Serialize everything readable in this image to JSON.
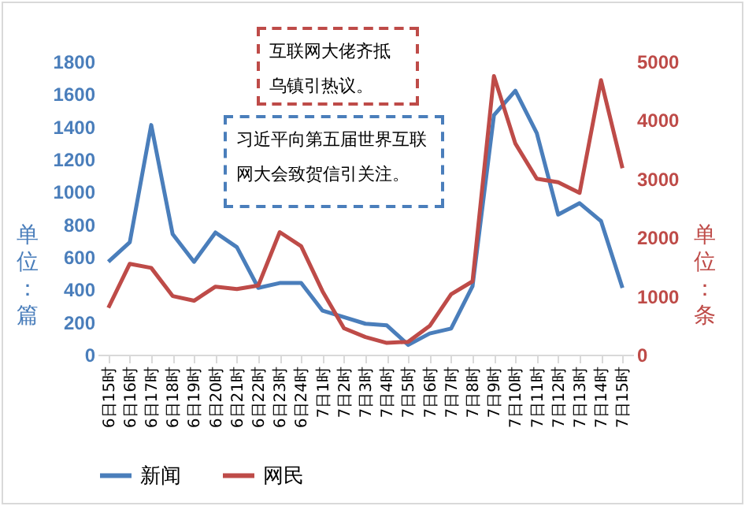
{
  "chart_data": {
    "type": "line",
    "categories": [
      "6日15时",
      "6日16时",
      "6日17时",
      "6日18时",
      "6日19时",
      "6日20时",
      "6日21时",
      "6日22时",
      "6日23时",
      "6日24时",
      "7日1时",
      "7日2时",
      "7日3时",
      "7日4时",
      "7日5时",
      "7日6时",
      "7日7时",
      "7日8时",
      "7日9时",
      "7日10时",
      "7日11时",
      "7日12时",
      "7日13时",
      "7日14时",
      "7日15时"
    ],
    "series": [
      {
        "name": "新闻",
        "color": "#4a7ebb",
        "values": [
          570,
          690,
          1410,
          740,
          570,
          750,
          660,
          410,
          440,
          440,
          270,
          230,
          190,
          180,
          60,
          130,
          160,
          420,
          1470,
          1620,
          1360,
          860,
          930,
          820,
          410
        ]
      },
      {
        "name": "网民",
        "color": "#be4b48",
        "axis": "y2",
        "values": [
          800,
          1550,
          1480,
          1000,
          920,
          1160,
          1120,
          1180,
          2090,
          1850,
          1080,
          450,
          300,
          200,
          220,
          490,
          1030,
          1250,
          4750,
          3600,
          3000,
          2940,
          2760,
          4680,
          3180
        ]
      }
    ],
    "ylabel": "单位：篇",
    "y2label": "单位：条",
    "ylim": [
      0,
      1800
    ],
    "yticks": [
      0,
      200,
      400,
      600,
      800,
      1000,
      1200,
      1400,
      1600,
      1800
    ],
    "y2lim": [
      0,
      5000
    ],
    "y2ticks": [
      0,
      1000,
      2000,
      3000,
      4000,
      5000
    ],
    "legend": "bottom",
    "grid": false,
    "annotations": [
      "互联网大佬齐抵乌镇引热议。",
      "习近平向第五届世界互联网大会致贺信引关注。"
    ]
  }
}
